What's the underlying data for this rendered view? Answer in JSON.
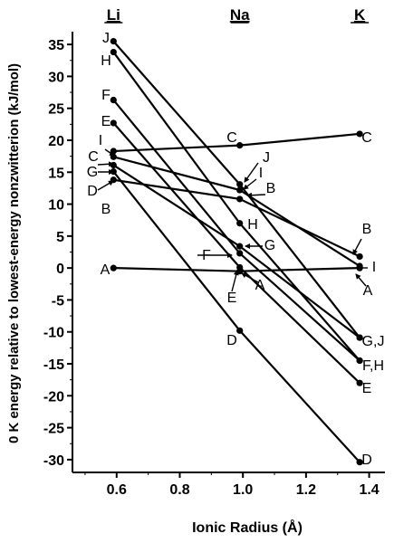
{
  "chart_data": {
    "type": "line",
    "xlabel": "Ionic Radius (Å)",
    "ylabel": "0 K energy relative to lowest-energy nonzwitterion (kJ/mol)",
    "xlim": [
      0.46,
      1.45
    ],
    "ylim": [
      -32,
      37
    ],
    "xticks": [
      "0.6",
      "0.8",
      "1.0",
      "1.2",
      "1.4"
    ],
    "yticks": [
      "35",
      "30",
      "25",
      "20",
      "15",
      "10",
      "5",
      "0",
      "-5",
      "-10",
      "-15",
      "-20",
      "-25",
      "-30"
    ],
    "x": [
      0.59,
      0.99,
      1.37
    ],
    "top_labels": [
      "Li",
      "Na",
      "K"
    ],
    "series": [
      {
        "name": "A",
        "values": [
          0,
          -0.5,
          0
        ]
      },
      {
        "name": "B",
        "values": [
          13.8,
          10.8,
          1.8
        ]
      },
      {
        "name": "C",
        "values": [
          18.3,
          19.2,
          21.0
        ]
      },
      {
        "name": "D",
        "values": [
          15.1,
          -9.8,
          -30.4
        ]
      },
      {
        "name": "E",
        "values": [
          22.7,
          0.1,
          -18.0
        ]
      },
      {
        "name": "F",
        "values": [
          26.3,
          2.3,
          -14.5
        ]
      },
      {
        "name": "G",
        "values": [
          16.1,
          3.4,
          -10.9
        ]
      },
      {
        "name": "H",
        "values": [
          33.8,
          7.0,
          -14.5
        ]
      },
      {
        "name": "I",
        "values": [
          17.4,
          12.2,
          0.3
        ]
      },
      {
        "name": "J",
        "values": [
          35.5,
          13.1,
          -10.9
        ]
      }
    ],
    "point_labels": [
      {
        "text": "J"
      },
      {
        "text": "H"
      },
      {
        "text": "F"
      },
      {
        "text": "E"
      },
      {
        "text": "I"
      },
      {
        "text": "C"
      },
      {
        "text": "G"
      },
      {
        "text": "D"
      },
      {
        "text": "B"
      },
      {
        "text": "A"
      },
      {
        "text": "C"
      },
      {
        "text": "J"
      },
      {
        "text": "I"
      },
      {
        "text": "B"
      },
      {
        "text": "H"
      },
      {
        "text": "G"
      },
      {
        "text": "F"
      },
      {
        "text": "E"
      },
      {
        "text": "A"
      },
      {
        "text": "D"
      },
      {
        "text": "C"
      },
      {
        "text": "B"
      },
      {
        "text": "I"
      },
      {
        "text": "A"
      },
      {
        "text": "G,J"
      },
      {
        "text": "F,H"
      },
      {
        "text": "E"
      },
      {
        "text": "D"
      }
    ]
  }
}
